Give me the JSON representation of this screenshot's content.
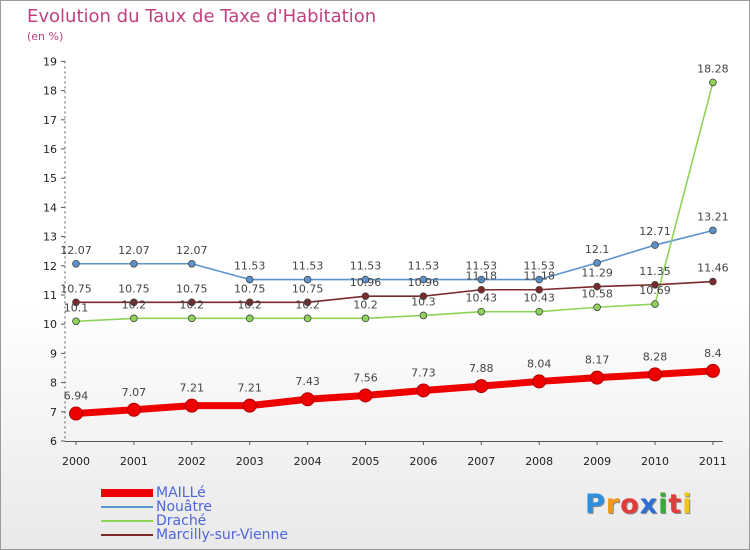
{
  "title": "Evolution du Taux de Taxe d'Habitation",
  "subtitle": "(en %)",
  "logo": {
    "letters": [
      "P",
      "r",
      "o",
      "x",
      "i",
      "t",
      "i"
    ],
    "colors": [
      "#2d8fe0",
      "#f39a1e",
      "#e23b3b",
      "#2b6fd6",
      "#3aaa35",
      "#e23b3b",
      "#f0c419"
    ]
  },
  "chart_data": {
    "type": "line",
    "x": [
      2000,
      2001,
      2002,
      2003,
      2004,
      2005,
      2006,
      2007,
      2008,
      2009,
      2010,
      2011
    ],
    "ylim": [
      6,
      19
    ],
    "yticks": [
      6,
      7,
      8,
      9,
      10,
      11,
      12,
      13,
      14,
      15,
      16,
      17,
      18,
      19
    ],
    "grid": false,
    "legend_position": "bottom-left",
    "series": [
      {
        "name": "MAILLé",
        "color": "#ee0000",
        "values": [
          6.94,
          7.07,
          7.21,
          7.21,
          7.43,
          7.56,
          7.73,
          7.88,
          8.04,
          8.17,
          8.28,
          8.4
        ],
        "labels": [
          "6.94",
          "7.07",
          "7.21",
          "7.21",
          "7.43",
          "7.56",
          "7.73",
          "7.88",
          "8.04",
          "8.17",
          "8.28",
          "8.4"
        ]
      },
      {
        "name": "Nouâtre",
        "color": "#5b93cc",
        "values": [
          12.07,
          12.07,
          12.07,
          11.53,
          11.53,
          11.53,
          11.53,
          11.53,
          11.53,
          12.1,
          12.71,
          13.21
        ],
        "labels": [
          "12.07",
          "12.07",
          "12.07",
          "11.53",
          "11.53",
          "11.53",
          "11.53",
          "11.53",
          "11.53",
          "12.1",
          "12.71",
          "13.21"
        ]
      },
      {
        "name": "Draché",
        "color": "#8ed45a",
        "values": [
          10.1,
          10.2,
          10.2,
          10.2,
          10.2,
          10.2,
          10.3,
          10.43,
          10.43,
          10.58,
          10.69,
          18.28
        ],
        "labels": [
          "10.1",
          "10.2",
          "10.2",
          "10.2",
          "10.2",
          "10.2",
          "10.3",
          "10.43",
          "10.43",
          "10.58",
          "10.69",
          "18.28"
        ]
      },
      {
        "name": "Marcilly-sur-Vienne",
        "color": "#7a2a2a",
        "values": [
          10.75,
          10.75,
          10.75,
          10.75,
          10.75,
          10.96,
          10.96,
          11.18,
          11.18,
          11.29,
          11.35,
          11.46
        ],
        "labels": [
          "10.75",
          "10.75",
          "10.75",
          "10.75",
          "10.75",
          "10.96",
          "10.96",
          "11.18",
          "11.18",
          "11.29",
          "11.35",
          "11.46"
        ]
      }
    ]
  }
}
